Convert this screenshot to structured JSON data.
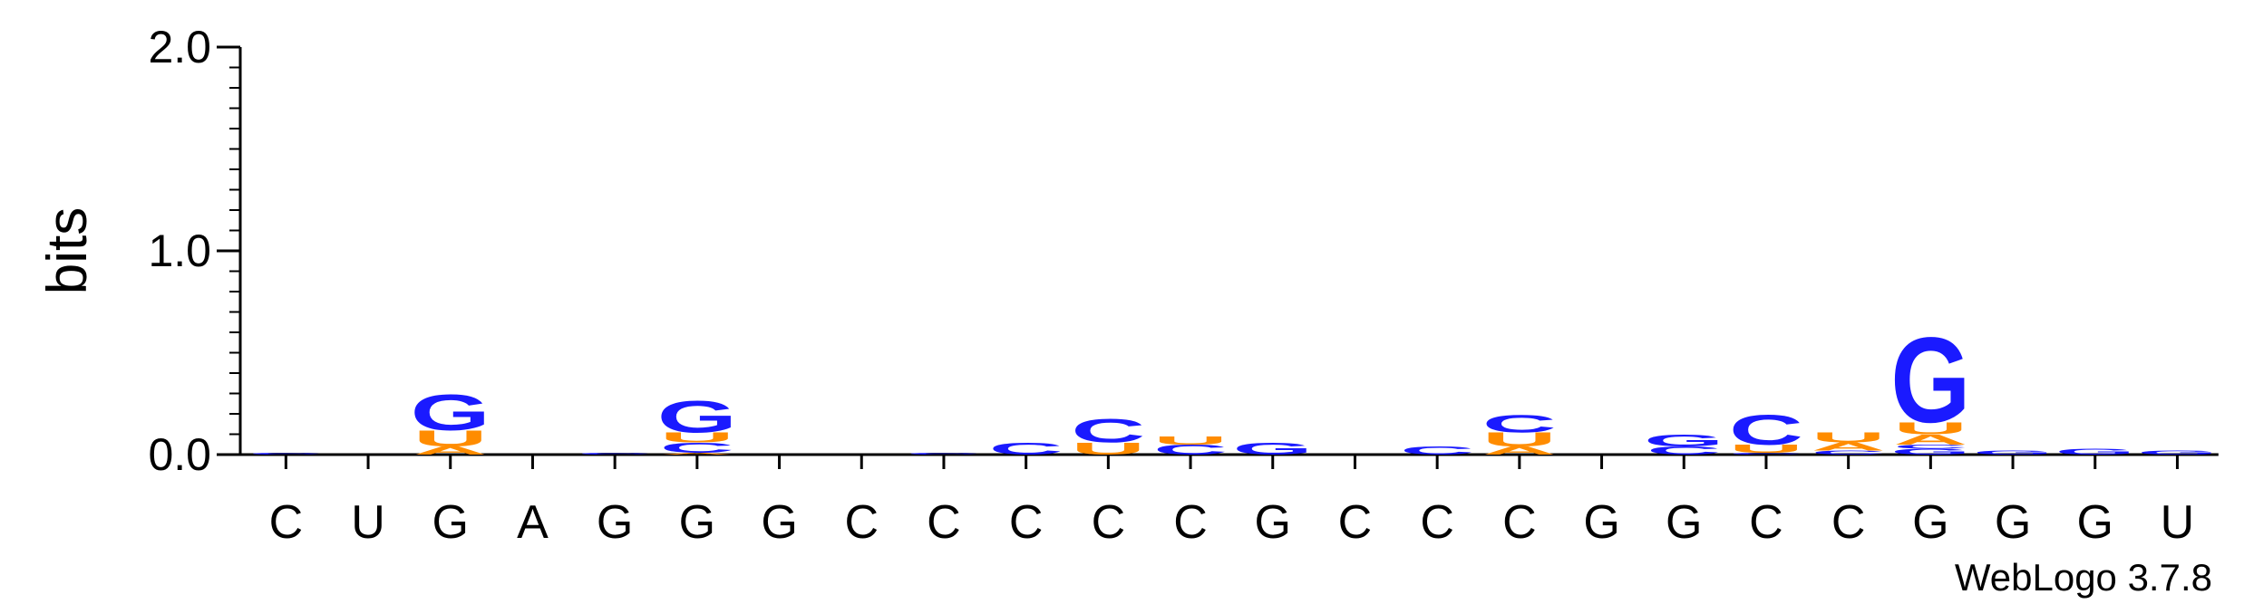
{
  "chart_data": {
    "type": "sequence-logo",
    "ylabel": "bits",
    "ylim": [
      0,
      2.0
    ],
    "y_ticks": [
      "0.0",
      "1.0",
      "2.0"
    ],
    "y_tick_values": [
      0,
      1,
      2
    ],
    "categories": [
      "C",
      "U",
      "G",
      "A",
      "G",
      "G",
      "G",
      "C",
      "C",
      "C",
      "C",
      "C",
      "G",
      "C",
      "C",
      "C",
      "G",
      "G",
      "C",
      "C",
      "G",
      "G",
      "G",
      "U"
    ],
    "colors": {
      "G": "#1a1aff",
      "C": "#1a1aff",
      "U": "#ff8c00",
      "A": "#ff8c00"
    },
    "stacks": [
      [
        {
          "letter": "C",
          "bits": 0.01
        }
      ],
      [],
      [
        {
          "letter": "A",
          "bits": 0.04
        },
        {
          "letter": "U",
          "bits": 0.08
        },
        {
          "letter": "G",
          "bits": 0.18
        }
      ],
      [],
      [
        {
          "letter": "C",
          "bits": 0.01
        }
      ],
      [
        {
          "letter": "A",
          "bits": 0.01
        },
        {
          "letter": "C",
          "bits": 0.05
        },
        {
          "letter": "U",
          "bits": 0.05
        },
        {
          "letter": "G",
          "bits": 0.16
        }
      ],
      [],
      [],
      [
        {
          "letter": "C",
          "bits": 0.01
        }
      ],
      [
        {
          "letter": "C",
          "bits": 0.06
        }
      ],
      [
        {
          "letter": "U",
          "bits": 0.06
        },
        {
          "letter": "C",
          "bits": 0.12
        }
      ],
      [
        {
          "letter": "C",
          "bits": 0.05
        },
        {
          "letter": "U",
          "bits": 0.04
        }
      ],
      [
        {
          "letter": "G",
          "bits": 0.06
        }
      ],
      [],
      [
        {
          "letter": "C",
          "bits": 0.04
        }
      ],
      [
        {
          "letter": "A",
          "bits": 0.04
        },
        {
          "letter": "U",
          "bits": 0.07
        },
        {
          "letter": "C",
          "bits": 0.09
        }
      ],
      [],
      [
        {
          "letter": "C",
          "bits": 0.04
        },
        {
          "letter": "G",
          "bits": 0.06
        }
      ],
      [
        {
          "letter": "C",
          "bits": 0.01
        },
        {
          "letter": "U",
          "bits": 0.04
        },
        {
          "letter": "C",
          "bits": 0.15
        }
      ],
      [
        {
          "letter": "C",
          "bits": 0.02
        },
        {
          "letter": "A",
          "bits": 0.04
        },
        {
          "letter": "U",
          "bits": 0.05
        }
      ],
      [
        {
          "letter": "G",
          "bits": 0.03
        },
        {
          "letter": "C",
          "bits": 0.02
        },
        {
          "letter": "A",
          "bits": 0.05
        },
        {
          "letter": "U",
          "bits": 0.06
        },
        {
          "letter": "G",
          "bits": 0.43
        }
      ],
      [
        {
          "letter": "G",
          "bits": 0.02
        }
      ],
      [
        {
          "letter": "G",
          "bits": 0.03
        }
      ],
      [
        {
          "letter": "G",
          "bits": 0.02
        }
      ]
    ],
    "credit": "WebLogo 3.7.8"
  }
}
